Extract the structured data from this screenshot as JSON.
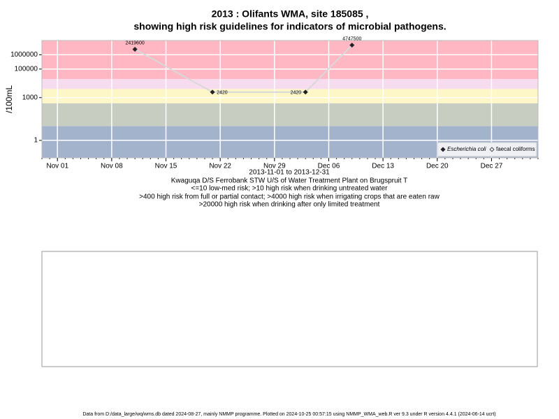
{
  "chart_data": {
    "type": "line",
    "title": [
      "2013 : Olifants WMA, site 185085 ,",
      "showing high risk guidelines for indicators of microbial pathogens."
    ],
    "ylabel": "/100mL",
    "xlabel": "2013-11-01 to 2013-12-31",
    "notes": [
      "Kwaguqa D/S Ferrobank STW U/S of Water Treatment Plant on Brugspruit T",
      "<=10 low-med risk; >10 high risk when drinking untreated water",
      ">400 high risk from full or partial contact; >4000 high risk when irrigating crops that are eaten raw",
      ">20000 high risk when drinking after only limited treatment"
    ],
    "x": [
      "2013-11-11",
      "2013-11-21",
      "2013-12-03",
      "2013-12-09"
    ],
    "series": [
      {
        "name": "Escherichia coli",
        "color": "#222222",
        "line_color": "#d8d8d8",
        "values": [
          2419600,
          2420,
          2420,
          4747500
        ]
      },
      {
        "name": "faecal coliforms",
        "color": "#444444",
        "values": [
          null,
          null,
          null,
          null
        ]
      }
    ],
    "xlim": [
      "2013-10-30",
      "2014-01-02"
    ],
    "xticks": [
      {
        "value": "2013-11-01",
        "label": "Nov 01"
      },
      {
        "value": "2013-11-08",
        "label": "Nov 08"
      },
      {
        "value": "2013-11-15",
        "label": "Nov 15"
      },
      {
        "value": "2013-11-22",
        "label": "Nov 22"
      },
      {
        "value": "2013-11-29",
        "label": "Nov 29"
      },
      {
        "value": "2013-12-06",
        "label": "Dec 06"
      },
      {
        "value": "2013-12-13",
        "label": "Dec 13"
      },
      {
        "value": "2013-12-20",
        "label": "Dec 20"
      },
      {
        "value": "2013-12-27",
        "label": "Dec 27"
      }
    ],
    "ylim": [
      0.06,
      10000000
    ],
    "yticks": [
      1,
      1000,
      100000,
      1000000
    ],
    "log_y": true,
    "grid": true,
    "legend": "bottomright",
    "risk_bands": [
      {
        "from": 0.06,
        "to": 10,
        "color": "#a3b3cc"
      },
      {
        "from": 10,
        "to": 400,
        "color": "#c7cdc1"
      },
      {
        "from": 400,
        "to": 4000,
        "color": "#fdf6c6"
      },
      {
        "from": 4000,
        "to": 20000,
        "color": "#f7dcef"
      },
      {
        "from": 20000,
        "to": 10000000,
        "color": "#ffb7c3"
      }
    ]
  },
  "footer": "Data from D:/data_large/wq/wms.db dated 2024-08-27, mainly NMMP programme. Plotted on 2024-10-25 00:57:15 using NMMP_WMA_web.R ver 9.3 under R version 4.4.1 (2024-06-14 ucrt)"
}
